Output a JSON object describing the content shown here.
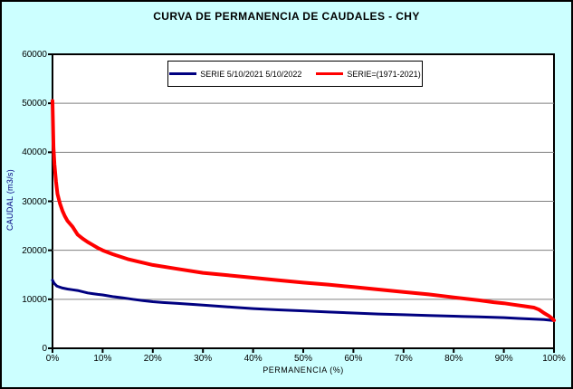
{
  "title": "CURVA DE PERMANENCIA DE CAUDALES - CHY",
  "colors": {
    "background": "#CCFFFF",
    "plot_background": "#FFFFFF",
    "gridline": "#808080",
    "axis": "#000000",
    "y_axis_title": "#000080"
  },
  "chart_data": {
    "type": "line",
    "title": "CURVA DE PERMANENCIA DE CAUDALES - CHY",
    "xlabel": "PERMANENCIA (%)",
    "ylabel": "CAUDAL (m3/s)",
    "xlim": [
      0,
      100
    ],
    "ylim": [
      0,
      60000
    ],
    "x_tick_values": [
      0,
      10,
      20,
      30,
      40,
      50,
      60,
      70,
      80,
      90,
      100
    ],
    "x_tick_labels": [
      "0%",
      "10%",
      "20%",
      "30%",
      "40%",
      "50%",
      "60%",
      "70%",
      "80%",
      "90%",
      "100%"
    ],
    "y_tick_values": [
      0,
      10000,
      20000,
      30000,
      40000,
      50000,
      60000
    ],
    "y_tick_labels": [
      "0",
      "10000",
      "20000",
      "30000",
      "40000",
      "50000",
      "60000"
    ],
    "grid": "horizontal",
    "legend_position": "top-center",
    "series": [
      {
        "name": "SERIE 5/10/2021 5/10/2022",
        "color": "#000080",
        "stroke_width": 3,
        "points": [
          [
            0,
            13900
          ],
          [
            0.3,
            13300
          ],
          [
            0.8,
            12750
          ],
          [
            1,
            12650
          ],
          [
            2,
            12300
          ],
          [
            3,
            12100
          ],
          [
            4,
            11950
          ],
          [
            5,
            11800
          ],
          [
            6,
            11550
          ],
          [
            7,
            11300
          ],
          [
            8,
            11150
          ],
          [
            9,
            11000
          ],
          [
            10,
            10900
          ],
          [
            12,
            10550
          ],
          [
            14,
            10300
          ],
          [
            16,
            10000
          ],
          [
            18,
            9750
          ],
          [
            20,
            9500
          ],
          [
            22,
            9350
          ],
          [
            25,
            9150
          ],
          [
            28,
            8950
          ],
          [
            30,
            8800
          ],
          [
            35,
            8450
          ],
          [
            40,
            8100
          ],
          [
            45,
            7850
          ],
          [
            50,
            7650
          ],
          [
            55,
            7400
          ],
          [
            60,
            7200
          ],
          [
            65,
            7000
          ],
          [
            70,
            6850
          ],
          [
            75,
            6700
          ],
          [
            80,
            6550
          ],
          [
            85,
            6400
          ],
          [
            90,
            6250
          ],
          [
            93,
            6100
          ],
          [
            96,
            5950
          ],
          [
            98,
            5850
          ],
          [
            100,
            5650
          ]
        ]
      },
      {
        "name": "SERIE=(1971-2021)",
        "color": "#FF0000",
        "stroke_width": 4,
        "points": [
          [
            0,
            50500
          ],
          [
            0.2,
            41000
          ],
          [
            0.4,
            37500
          ],
          [
            0.7,
            34000
          ],
          [
            1,
            31500
          ],
          [
            1.5,
            29500
          ],
          [
            2,
            28000
          ],
          [
            2.5,
            26900
          ],
          [
            3,
            26000
          ],
          [
            4,
            24800
          ],
          [
            5,
            23200
          ],
          [
            6,
            22400
          ],
          [
            7,
            21700
          ],
          [
            8,
            21100
          ],
          [
            9,
            20500
          ],
          [
            10,
            20000
          ],
          [
            12,
            19200
          ],
          [
            15,
            18200
          ],
          [
            17,
            17700
          ],
          [
            20,
            17000
          ],
          [
            25,
            16200
          ],
          [
            30,
            15400
          ],
          [
            35,
            14900
          ],
          [
            40,
            14400
          ],
          [
            45,
            13900
          ],
          [
            50,
            13400
          ],
          [
            55,
            13000
          ],
          [
            60,
            12500
          ],
          [
            65,
            12000
          ],
          [
            70,
            11500
          ],
          [
            75,
            11000
          ],
          [
            80,
            10400
          ],
          [
            85,
            9800
          ],
          [
            88,
            9400
          ],
          [
            90,
            9200
          ],
          [
            92,
            8900
          ],
          [
            94,
            8600
          ],
          [
            96,
            8300
          ],
          [
            97,
            7900
          ],
          [
            98,
            7200
          ],
          [
            99,
            6600
          ],
          [
            99.5,
            6200
          ],
          [
            100,
            5700
          ]
        ]
      }
    ]
  }
}
